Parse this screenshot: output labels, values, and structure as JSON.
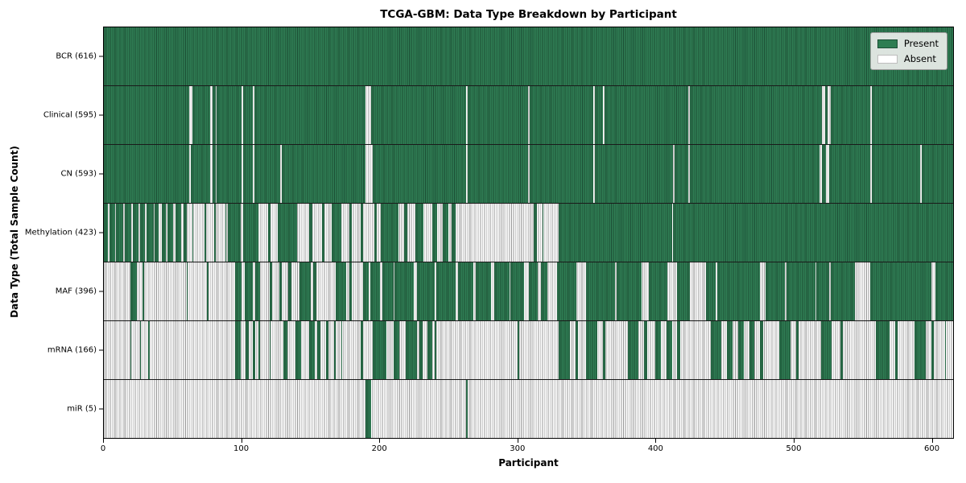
{
  "title": "TCGA-GBM: Data Type Breakdown by Participant",
  "xlabel": "Participant",
  "ylabel": "Data Type (Total Sample Count)",
  "legend": {
    "present_label": "Present",
    "absent_label": "Absent"
  },
  "colors": {
    "present_fill": "#2f7d54",
    "present_edge": "#1c4e35",
    "absent_fill": "#ffffff",
    "absent_edge": "#979797",
    "legend_bg": "#ebeeeb"
  },
  "chart_data": {
    "type": "heatmap",
    "title": "TCGA-GBM: Data Type Breakdown by Participant",
    "xlabel": "Participant",
    "ylabel": "Data Type (Total Sample Count)",
    "legend_entries": [
      "Present",
      "Absent"
    ],
    "legend_position": "upper right",
    "x_range": [
      0,
      616
    ],
    "x_ticks": [
      0,
      100,
      200,
      300,
      400,
      500,
      600
    ],
    "value_encoding": {
      "present": "green bar",
      "absent": "white bar"
    },
    "rows": [
      {
        "label": "BCR (616)",
        "name": "BCR",
        "present_count": 616,
        "present_runs": [
          [
            0,
            616
          ]
        ]
      },
      {
        "label": "Clinical (595)",
        "name": "Clinical",
        "present_count": 595,
        "present_runs": [
          [
            0,
            62
          ],
          [
            64,
            77
          ],
          [
            79,
            81
          ],
          [
            82,
            100
          ],
          [
            101,
            108
          ],
          [
            109,
            190
          ],
          [
            194,
            263
          ],
          [
            264,
            308
          ],
          [
            309,
            355
          ],
          [
            356,
            362
          ],
          [
            363,
            424
          ],
          [
            425,
            521
          ],
          [
            523,
            525
          ],
          [
            527,
            556
          ],
          [
            557,
            616
          ]
        ]
      },
      {
        "label": "CN (593)",
        "name": "CN",
        "present_count": 593,
        "present_runs": [
          [
            0,
            62
          ],
          [
            63,
            77
          ],
          [
            79,
            81
          ],
          [
            82,
            100
          ],
          [
            101,
            108
          ],
          [
            109,
            128
          ],
          [
            129,
            190
          ],
          [
            195,
            263
          ],
          [
            264,
            308
          ],
          [
            309,
            355
          ],
          [
            356,
            413
          ],
          [
            414,
            424
          ],
          [
            425,
            519
          ],
          [
            521,
            524
          ],
          [
            526,
            556
          ],
          [
            557,
            592
          ],
          [
            593,
            616
          ]
        ]
      },
      {
        "label": "Methylation (423)",
        "name": "Methylation",
        "present_count": 423,
        "present_runs": [
          [
            0,
            3
          ],
          [
            4,
            8
          ],
          [
            9,
            14
          ],
          [
            15,
            20
          ],
          [
            21,
            25
          ],
          [
            26,
            30
          ],
          [
            31,
            36
          ],
          [
            37,
            40
          ],
          [
            42,
            45
          ],
          [
            46,
            50
          ],
          [
            52,
            56
          ],
          [
            58,
            60
          ],
          [
            64,
            65
          ],
          [
            73,
            74
          ],
          [
            80,
            81
          ],
          [
            88,
            89
          ],
          [
            90,
            99
          ],
          [
            101,
            112
          ],
          [
            119,
            121
          ],
          [
            126,
            140
          ],
          [
            149,
            151
          ],
          [
            158,
            160
          ],
          [
            165,
            172
          ],
          [
            178,
            180
          ],
          [
            186,
            188
          ],
          [
            196,
            198
          ],
          [
            201,
            214
          ],
          [
            218,
            220
          ],
          [
            226,
            232
          ],
          [
            238,
            242
          ],
          [
            246,
            250
          ],
          [
            252,
            255
          ],
          [
            312,
            314
          ],
          [
            318,
            319
          ],
          [
            330,
            412
          ],
          [
            413,
            616
          ]
        ]
      },
      {
        "label": "MAF (396)",
        "name": "MAF",
        "present_count": 396,
        "present_runs": [
          [
            19,
            24
          ],
          [
            28,
            29
          ],
          [
            60,
            61
          ],
          [
            75,
            76
          ],
          [
            95,
            100
          ],
          [
            102,
            108
          ],
          [
            110,
            113
          ],
          [
            120,
            122
          ],
          [
            127,
            129
          ],
          [
            134,
            136
          ],
          [
            142,
            150
          ],
          [
            152,
            154
          ],
          [
            168,
            176
          ],
          [
            178,
            180
          ],
          [
            188,
            192
          ],
          [
            193,
            200
          ],
          [
            202,
            210
          ],
          [
            211,
            225
          ],
          [
            227,
            240
          ],
          [
            241,
            255
          ],
          [
            257,
            268
          ],
          [
            270,
            281
          ],
          [
            283,
            294
          ],
          [
            295,
            305
          ],
          [
            308,
            315
          ],
          [
            317,
            322
          ],
          [
            329,
            343
          ],
          [
            350,
            371
          ],
          [
            372,
            390
          ],
          [
            395,
            409
          ],
          [
            416,
            425
          ],
          [
            437,
            444
          ],
          [
            445,
            476
          ],
          [
            480,
            494
          ],
          [
            495,
            516
          ],
          [
            517,
            526
          ],
          [
            527,
            545
          ],
          [
            556,
            600
          ],
          [
            603,
            616
          ]
        ]
      },
      {
        "label": "mRNA (166)",
        "name": "mRNA",
        "present_count": 166,
        "present_runs": [
          [
            19,
            20
          ],
          [
            26,
            27
          ],
          [
            32,
            33
          ],
          [
            95,
            99
          ],
          [
            103,
            105
          ],
          [
            108,
            110
          ],
          [
            112,
            113
          ],
          [
            120,
            121
          ],
          [
            130,
            133
          ],
          [
            139,
            143
          ],
          [
            149,
            153
          ],
          [
            155,
            157
          ],
          [
            161,
            163
          ],
          [
            167,
            168
          ],
          [
            172,
            173
          ],
          [
            186,
            188
          ],
          [
            195,
            205
          ],
          [
            210,
            214
          ],
          [
            219,
            227
          ],
          [
            229,
            231
          ],
          [
            235,
            238
          ],
          [
            240,
            241
          ],
          [
            300,
            301
          ],
          [
            330,
            338
          ],
          [
            342,
            344
          ],
          [
            350,
            358
          ],
          [
            362,
            364
          ],
          [
            380,
            388
          ],
          [
            392,
            394
          ],
          [
            400,
            404
          ],
          [
            408,
            412
          ],
          [
            416,
            418
          ],
          [
            440,
            448
          ],
          [
            452,
            456
          ],
          [
            460,
            464
          ],
          [
            468,
            472
          ],
          [
            476,
            478
          ],
          [
            490,
            498
          ],
          [
            502,
            504
          ],
          [
            520,
            528
          ],
          [
            534,
            536
          ],
          [
            560,
            570
          ],
          [
            574,
            576
          ],
          [
            588,
            596
          ],
          [
            600,
            602
          ],
          [
            610,
            611
          ]
        ]
      },
      {
        "label": "miR (5)",
        "name": "miR",
        "present_count": 5,
        "present_runs": [
          [
            190,
            194
          ],
          [
            263,
            264
          ]
        ]
      }
    ]
  }
}
